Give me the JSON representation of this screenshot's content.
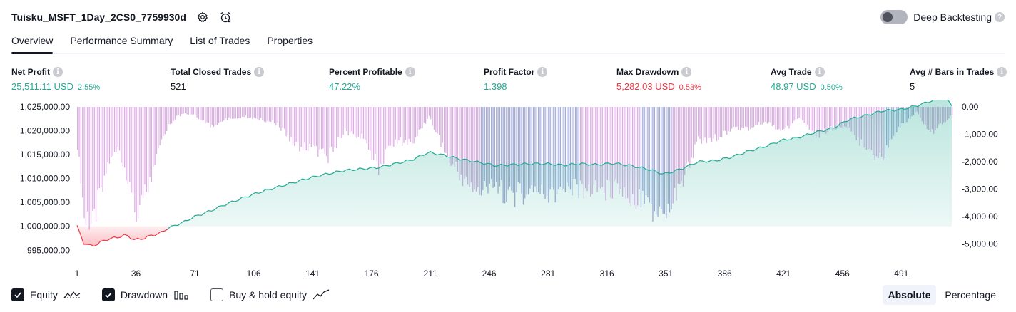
{
  "header": {
    "title": "Tuisku_MSFT_1Day_2CS0_7759930d",
    "settings_icon": "gear-icon",
    "alert_icon": "alarm-clock-icon",
    "deep_backtesting_label": "Deep Backtesting",
    "deep_backtesting_enabled": false
  },
  "tabs": [
    {
      "label": "Overview",
      "active": true
    },
    {
      "label": "Performance Summary",
      "active": false
    },
    {
      "label": "List of Trades",
      "active": false
    },
    {
      "label": "Properties",
      "active": false
    }
  ],
  "metrics": {
    "net_profit": {
      "label": "Net Profit",
      "value": "25,511.11 USD",
      "pct": "2.55%"
    },
    "total_closed_trades": {
      "label": "Total Closed Trades",
      "value": "521"
    },
    "percent_profitable": {
      "label": "Percent Profitable",
      "value": "47.22%"
    },
    "profit_factor": {
      "label": "Profit Factor",
      "value": "1.398"
    },
    "max_drawdown": {
      "label": "Max Drawdown",
      "value": "5,282.03 USD",
      "pct": "0.53%"
    },
    "avg_trade": {
      "label": "Avg Trade",
      "value": "48.97 USD",
      "pct": "0.50%"
    },
    "avg_bars": {
      "label": "Avg # Bars in Trades",
      "value": "5"
    }
  },
  "chart_data": {
    "type": "area",
    "x_ticks": [
      "1",
      "36",
      "71",
      "106",
      "141",
      "176",
      "211",
      "246",
      "281",
      "316",
      "351",
      "386",
      "421",
      "456",
      "491"
    ],
    "left_axis_ticks": [
      "1,025,000.00",
      "1,020,000.00",
      "1,015,000.00",
      "1,010,000.00",
      "1,005,000.00",
      "1,000,000.00",
      "995,000.00"
    ],
    "right_axis_ticks": [
      "0.00",
      "-1,000.00",
      "-2,000.00",
      "-3,000.00",
      "-4,000.00",
      "-5,000.00"
    ],
    "left_range": [
      994000,
      1025000
    ],
    "right_range": [
      -5400,
      0
    ],
    "x_range": [
      1,
      521
    ],
    "baseline": 1000000,
    "equity": {
      "x": [
        1,
        5,
        10,
        15,
        20,
        25,
        30,
        35,
        40,
        45,
        50,
        55,
        60,
        65,
        70,
        80,
        90,
        100,
        110,
        120,
        130,
        140,
        150,
        160,
        170,
        180,
        190,
        200,
        210,
        220,
        230,
        240,
        250,
        260,
        270,
        280,
        290,
        300,
        310,
        320,
        330,
        340,
        350,
        360,
        370,
        380,
        390,
        400,
        410,
        420,
        430,
        440,
        450,
        460,
        470,
        480,
        490,
        500,
        505,
        510,
        515,
        521
      ],
      "y": [
        1000000,
        996500,
        995800,
        996700,
        997400,
        997700,
        998200,
        997200,
        997400,
        998100,
        998500,
        999600,
        1000300,
        1001000,
        1001900,
        1003200,
        1004700,
        1006000,
        1007200,
        1008200,
        1009200,
        1010200,
        1011000,
        1011700,
        1012000,
        1012300,
        1013100,
        1013900,
        1015500,
        1014800,
        1014000,
        1013400,
        1012700,
        1012900,
        1013100,
        1013100,
        1012800,
        1013100,
        1012900,
        1013200,
        1012700,
        1012000,
        1010900,
        1012000,
        1013500,
        1013700,
        1014500,
        1015700,
        1016700,
        1018000,
        1018600,
        1019700,
        1020500,
        1022400,
        1023200,
        1024200,
        1024400,
        1025200,
        1025800,
        1026400,
        1027500,
        1025400
      ]
    },
    "drawdown": {
      "x": [
        1,
        5,
        10,
        15,
        20,
        25,
        30,
        35,
        40,
        45,
        50,
        55,
        60,
        65,
        70,
        80,
        90,
        100,
        110,
        120,
        130,
        140,
        150,
        160,
        170,
        180,
        190,
        200,
        210,
        220,
        230,
        240,
        250,
        260,
        270,
        280,
        290,
        300,
        310,
        320,
        330,
        340,
        350,
        360,
        370,
        380,
        390,
        400,
        410,
        420,
        430,
        440,
        450,
        460,
        470,
        480,
        490,
        500,
        505,
        510,
        515,
        521
      ],
      "y": [
        -1600,
        -4700,
        -5000,
        -3400,
        -2200,
        -1600,
        -2700,
        -4300,
        -3900,
        -2900,
        -1700,
        -800,
        -400,
        -300,
        -300,
        -800,
        -500,
        -400,
        -500,
        -700,
        -1600,
        -1700,
        -2100,
        -1000,
        -1300,
        -2500,
        -1400,
        -1500,
        -400,
        -2000,
        -3000,
        -3500,
        -3400,
        -3700,
        -3500,
        -3600,
        -3600,
        -3400,
        -3500,
        -3400,
        -3700,
        -4200,
        -4700,
        -3200,
        -1400,
        -1300,
        -900,
        -900,
        -600,
        -1000,
        -500,
        -1200,
        -900,
        -800,
        -1900,
        -2100,
        -800,
        -200,
        -800,
        -1000,
        -700,
        -300
      ]
    },
    "colors": {
      "equity_up": "#22ab94",
      "equity_down": "#f23645",
      "drawdown_bar": "#ce93d8",
      "drawdown_bar_deep": "#7e87c8"
    }
  },
  "legend": {
    "equity": {
      "label": "Equity",
      "checked": true,
      "icon": "equity-line-icon"
    },
    "drawdown": {
      "label": "Drawdown",
      "checked": true,
      "icon": "drawdown-bars-icon"
    },
    "buy_hold": {
      "label": "Buy & hold equity",
      "checked": false,
      "icon": "buy-hold-line-icon"
    }
  },
  "mode": {
    "absolute": "Absolute",
    "percentage": "Percentage",
    "selected": "absolute"
  }
}
